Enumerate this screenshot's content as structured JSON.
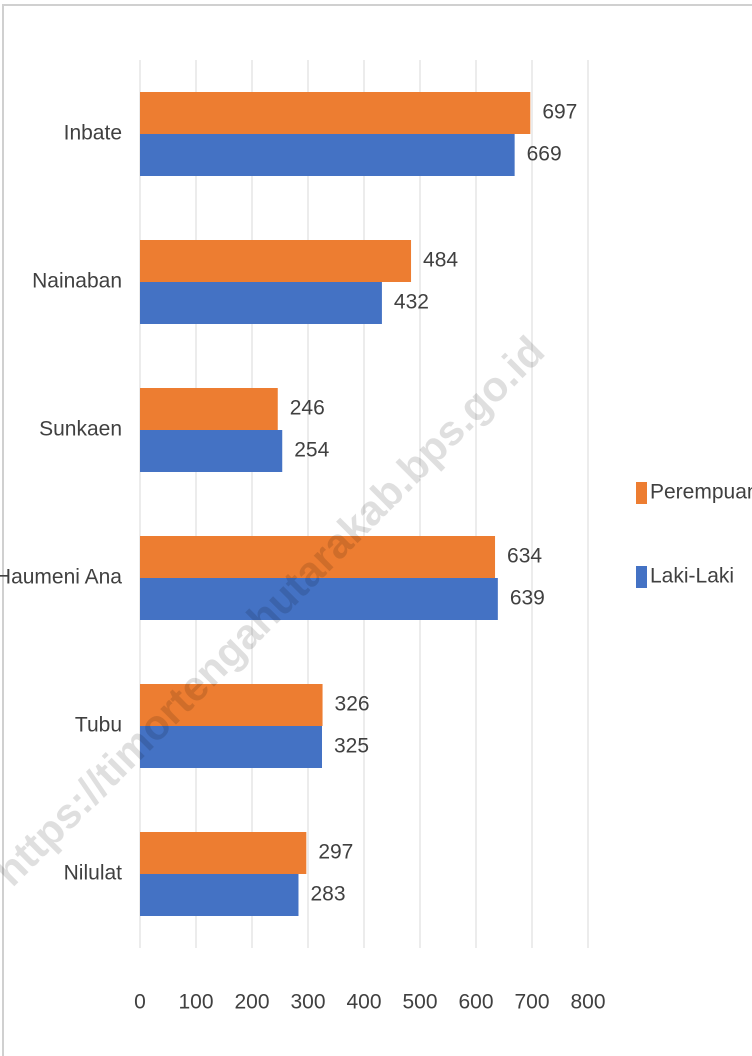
{
  "chart_data": {
    "type": "hbar",
    "categories": [
      "Inbate",
      "Nainaban",
      "Sunkaen",
      "Haumeni Ana",
      "Tubu",
      "Nilulat"
    ],
    "series": [
      {
        "name": "Perempuan",
        "color": "#ed7d31",
        "values": [
          697,
          484,
          246,
          634,
          326,
          297
        ]
      },
      {
        "name": "Laki-Laki",
        "color": "#4472c4",
        "values": [
          669,
          432,
          254,
          639,
          325,
          283
        ]
      }
    ],
    "xlim": [
      0,
      800
    ],
    "xticks": [
      0,
      100,
      200,
      300,
      400,
      500,
      600,
      700,
      800
    ],
    "grid": true,
    "legend": "right",
    "watermark": "https://timortengahutarakab.bps.go.id"
  }
}
